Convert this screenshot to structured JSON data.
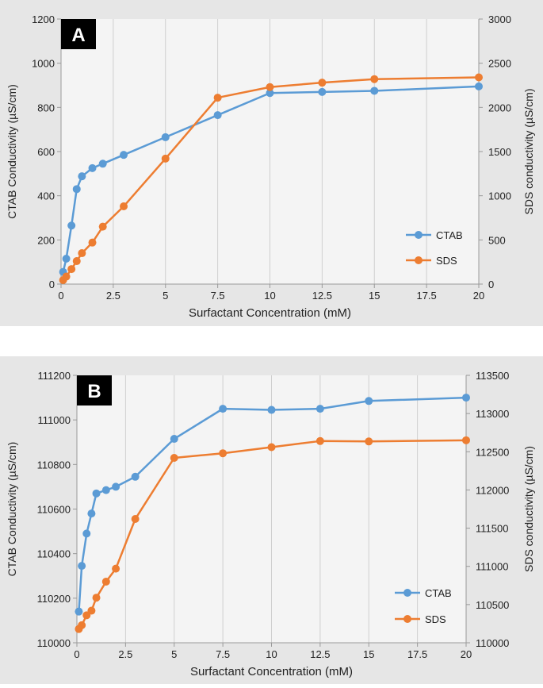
{
  "chart_data": [
    {
      "panel_label": "A",
      "type": "line",
      "xlabel": "Surfactant Concentration (mM)",
      "ylabel_left": "CTAB Conductivity (µS/cm)",
      "ylabel_right": "SDS conductivity (µS/cm)",
      "xlim": [
        0,
        20
      ],
      "ylim_left": [
        0,
        1200
      ],
      "ylim_right": [
        0,
        3000
      ],
      "x_ticks": [
        0,
        2.5,
        5,
        7.5,
        10,
        12.5,
        15,
        17.5,
        20
      ],
      "y_left_ticks": [
        0,
        200,
        400,
        600,
        800,
        1000,
        1200
      ],
      "y_right_ticks": [
        0,
        500,
        1000,
        1500,
        2000,
        2500,
        3000
      ],
      "grid": "vertical",
      "legend_position": "bottom-right",
      "series": [
        {
          "name": "CTAB",
          "axis": "left",
          "color": "#5b9bd5",
          "x": [
            0.1,
            0.25,
            0.5,
            0.75,
            1,
            1.5,
            2,
            3,
            5,
            7.5,
            10,
            12.5,
            15,
            20
          ],
          "y": [
            55,
            115,
            265,
            430,
            488,
            525,
            545,
            585,
            665,
            765,
            865,
            870,
            875,
            895
          ]
        },
        {
          "name": "SDS",
          "axis": "right",
          "color": "#ed7d31",
          "x": [
            0.1,
            0.25,
            0.5,
            0.75,
            1,
            1.5,
            2,
            3,
            5,
            7.5,
            10,
            12.5,
            15,
            20
          ],
          "y": [
            45,
            85,
            170,
            260,
            350,
            470,
            650,
            880,
            1420,
            2110,
            2230,
            2280,
            2320,
            2340
          ]
        }
      ]
    },
    {
      "panel_label": "B",
      "type": "line",
      "xlabel": "Surfactant Concentration (mM)",
      "ylabel_left": "CTAB Conductivity (µS/cm)",
      "ylabel_right": "SDS conductivity (µS/cm)",
      "xlim": [
        0,
        20
      ],
      "ylim_left": [
        110000,
        111200
      ],
      "ylim_right": [
        110000,
        113500
      ],
      "x_ticks": [
        0,
        2.5,
        5,
        7.5,
        10,
        12.5,
        15,
        17.5,
        20
      ],
      "y_left_ticks": [
        110000,
        110200,
        110400,
        110600,
        110800,
        111000,
        111200
      ],
      "y_right_ticks": [
        110000,
        110500,
        111000,
        111500,
        112000,
        112500,
        113000,
        113500
      ],
      "grid": "vertical",
      "legend_position": "bottom-right",
      "series": [
        {
          "name": "CTAB",
          "axis": "left",
          "color": "#5b9bd5",
          "x": [
            0.1,
            0.25,
            0.5,
            0.75,
            1,
            1.5,
            2,
            3,
            5,
            7.5,
            10,
            12.5,
            15,
            20
          ],
          "y": [
            110140,
            110345,
            110490,
            110580,
            110670,
            110685,
            110700,
            110745,
            110915,
            111050,
            111045,
            111050,
            111085,
            111100
          ]
        },
        {
          "name": "SDS",
          "axis": "right",
          "color": "#ed7d31",
          "x": [
            0.1,
            0.25,
            0.5,
            0.75,
            1,
            1.5,
            2,
            3,
            5,
            7.5,
            10,
            12.5,
            15,
            20
          ],
          "y": [
            110180,
            110230,
            110360,
            110420,
            110590,
            110800,
            110970,
            111620,
            112420,
            112480,
            112560,
            112640,
            112635,
            112650
          ]
        }
      ]
    }
  ]
}
